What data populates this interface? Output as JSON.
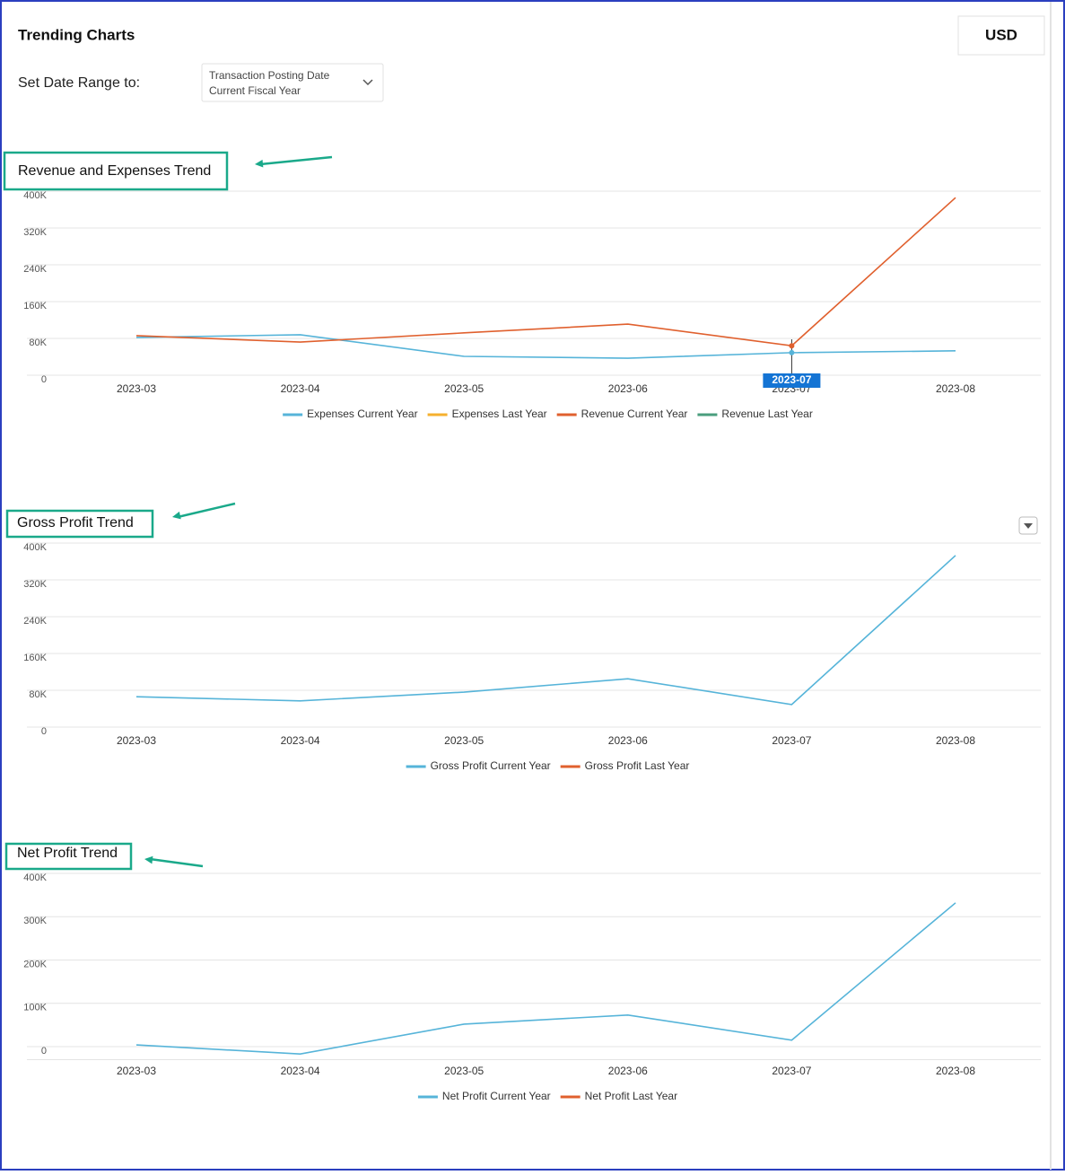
{
  "header": {
    "title": "Trending Charts",
    "currency": "USD",
    "date_range_label": "Set Date Range to:",
    "date_field": "Transaction Posting Date",
    "date_period": "Current Fiscal Year"
  },
  "chart_data": [
    {
      "type": "line",
      "title": "Revenue and Expenses Trend",
      "hover_label": "2023-07",
      "categories": [
        "2023-03",
        "2023-04",
        "2023-05",
        "2023-06",
        "2023-07",
        "2023-08"
      ],
      "series": [
        {
          "name": "Expenses Current Year",
          "color": "#56b4d9",
          "values": [
            82000,
            88000,
            41000,
            37000,
            49000,
            53000
          ]
        },
        {
          "name": "Expenses Last Year",
          "color": "#f5b02e",
          "values": [
            null,
            null,
            null,
            null,
            null,
            null
          ]
        },
        {
          "name": "Revenue Current Year",
          "color": "#e0602e",
          "values": [
            86000,
            72000,
            92000,
            111000,
            64000,
            386000
          ]
        },
        {
          "name": "Revenue Last Year",
          "color": "#4a9e7d",
          "values": [
            null,
            null,
            null,
            null,
            null,
            null
          ]
        }
      ],
      "ylim": [
        0,
        400000
      ],
      "yticks": [
        0,
        {
          "value": 80000,
          "label": "80K"
        },
        {
          "value": 160000,
          "label": "160K"
        },
        {
          "value": 240000,
          "label": "240K"
        },
        {
          "value": 320000,
          "label": "320K"
        },
        {
          "value": 400000,
          "label": "400K"
        }
      ],
      "grid": true
    },
    {
      "type": "line",
      "title": "Gross Profit Trend",
      "categories": [
        "2023-03",
        "2023-04",
        "2023-05",
        "2023-06",
        "2023-07",
        "2023-08"
      ],
      "series": [
        {
          "name": "Gross Profit Current Year",
          "color": "#56b4d9",
          "values": [
            66000,
            57000,
            76000,
            105000,
            49000,
            373000
          ]
        },
        {
          "name": "Gross Profit Last Year",
          "color": "#e0602e",
          "values": [
            null,
            null,
            null,
            null,
            null,
            null
          ]
        }
      ],
      "ylim": [
        0,
        400000
      ],
      "yticks": [
        0,
        {
          "value": 80000,
          "label": "80K"
        },
        {
          "value": 160000,
          "label": "160K"
        },
        {
          "value": 240000,
          "label": "240K"
        },
        {
          "value": 320000,
          "label": "320K"
        },
        {
          "value": 400000,
          "label": "400K"
        }
      ],
      "grid": true
    },
    {
      "type": "line",
      "title": "Net Profit Trend",
      "categories": [
        "2023-03",
        "2023-04",
        "2023-05",
        "2023-06",
        "2023-07",
        "2023-08"
      ],
      "series": [
        {
          "name": "Net Profit Current Year",
          "color": "#56b4d9",
          "values": [
            4000,
            -17000,
            52000,
            73000,
            15000,
            332000
          ]
        },
        {
          "name": "Net Profit Last Year",
          "color": "#e0602e",
          "values": [
            null,
            null,
            null,
            null,
            null,
            null
          ]
        }
      ],
      "ylim": [
        -30000,
        400000
      ],
      "yticks": [
        0,
        {
          "value": 100000,
          "label": "100K"
        },
        {
          "value": 200000,
          "label": "200K"
        },
        {
          "value": 300000,
          "label": "300K"
        },
        {
          "value": 400000,
          "label": "400K"
        }
      ],
      "grid": true
    }
  ]
}
